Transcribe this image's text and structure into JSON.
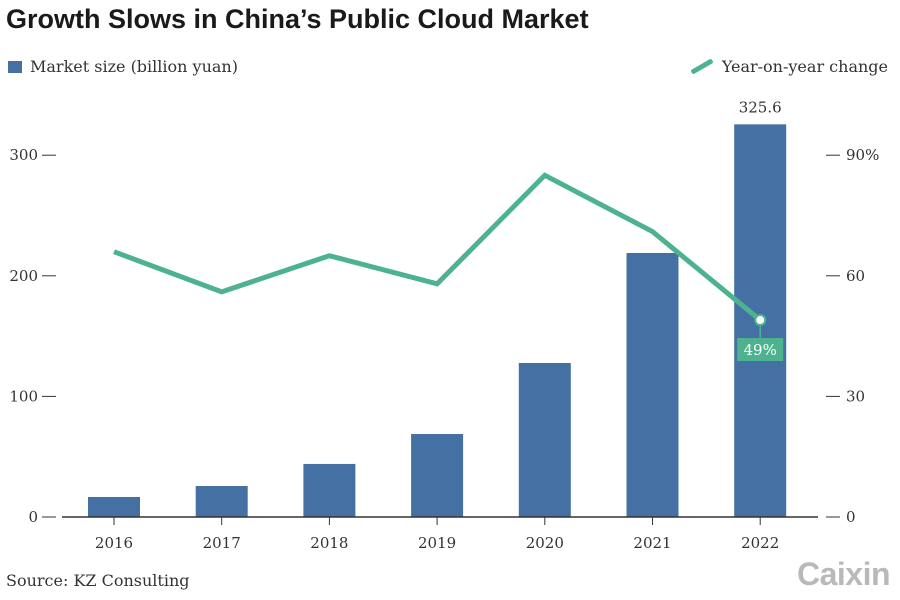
{
  "chart_data": {
    "type": "bar+line",
    "title": "Growth Slows in China’s Public Cloud Market",
    "categories": [
      "2016",
      "2017",
      "2018",
      "2019",
      "2020",
      "2021",
      "2022"
    ],
    "series": [
      {
        "name": "Market size (billion yuan)",
        "type": "bar",
        "axis": "left",
        "color": "#4470a3",
        "values": [
          16.6,
          25.7,
          44.0,
          68.8,
          127.7,
          218.9,
          325.6
        ]
      },
      {
        "name": "Year-on-year change",
        "type": "line",
        "axis": "right",
        "color": "#4db38e",
        "values": [
          66,
          56,
          65,
          58,
          85,
          71,
          49
        ]
      }
    ],
    "left_axis": {
      "ylim": [
        0,
        340
      ],
      "ticks": [
        0,
        100,
        200,
        300
      ],
      "tick_labels": [
        "0",
        "100",
        "200",
        "300"
      ]
    },
    "right_axis": {
      "ylim": [
        0,
        102
      ],
      "ticks": [
        0,
        30,
        60,
        90
      ],
      "tick_labels": [
        "0",
        "30",
        "60",
        "90%"
      ]
    },
    "annotations": {
      "bar_label": "325.6",
      "line_label": "49%"
    },
    "grid": false,
    "legend_placement": "top"
  },
  "source": "Source: KZ Consulting",
  "logo": "Caixin"
}
